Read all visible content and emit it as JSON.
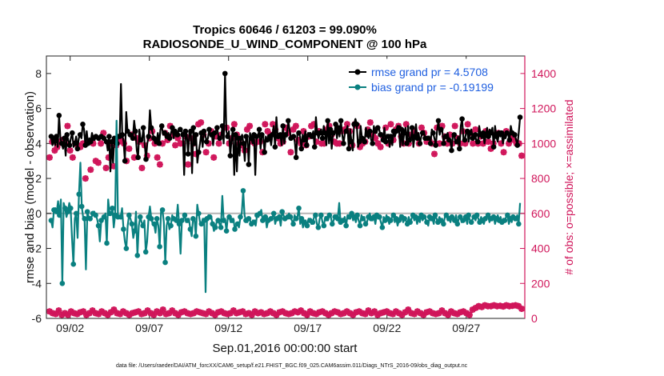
{
  "chart_data": {
    "type": "line",
    "title_line1": "Tropics 60646 / 61203 = 99.090%",
    "title_line2": "RADIOSONDE_U_WIND_COMPONENT @ 100 hPa",
    "ylabel": "rmse and bias (model - observation)",
    "ylabel_right": "# of obs: o=possible; ×=assimilated",
    "xlabel": "Sep.01,2016 00:00:00 start",
    "footnote": "data file: /Users/raeder/DAI/ATM_forcXX/CAM6_setup/f.e21.FHIST_BGC.f09_025.CAM6assim.011/Diags_NTrS_2016-09/obs_diag_output.nc",
    "ylim": [
      -6,
      9
    ],
    "ylim_right": [
      0,
      1500
    ],
    "xlim": [
      0.5,
      30.7
    ],
    "y_ticks": [
      "-6",
      "-4",
      "-2",
      "0",
      "2",
      "4",
      "6",
      "8"
    ],
    "y_ticks_right": [
      "0",
      "200",
      "400",
      "600",
      "800",
      "1000",
      "1200",
      "1400"
    ],
    "x_ticks": [
      "09/02",
      "09/07",
      "09/12",
      "09/17",
      "09/22",
      "09/27"
    ],
    "x_tick_values": [
      2,
      7,
      12,
      17,
      22,
      27
    ],
    "colors": {
      "rmse": "#000000",
      "bias": "#0a8080",
      "obs": "#d0155a",
      "zero_line": "#b5b5b5",
      "legend_text": "#1f5fe0"
    },
    "series": [
      {
        "name": "rmse grand pr = 4.5708",
        "color": "#000000",
        "values": [
          4.4,
          3.9,
          4.3,
          3.9,
          4.4,
          3.8,
          5.6,
          4.3,
          4.0,
          3.7,
          4.3,
          3.3,
          4.5,
          4.2,
          3.9,
          4.3,
          4.6,
          3.8,
          4.0,
          4.4,
          3.7,
          4.3,
          4.5,
          4.3,
          5.1,
          4.8,
          3.9,
          4.7,
          4.0,
          4.3,
          4.1,
          4.6,
          4.3,
          4.2,
          4.4,
          4.3,
          4.3,
          4.4,
          4.4,
          4.3,
          4.3,
          4.2,
          4.1,
          3.6,
          4.4,
          2.4,
          4.1,
          2.9,
          4.3,
          4.1,
          4.0,
          4.5,
          4.4,
          7.4,
          4.5,
          4.1,
          3.0,
          5.8,
          4.7,
          4.6,
          4.5,
          4.4,
          4.3,
          5.3,
          4.7,
          3.6,
          3.2,
          4.8,
          4.2,
          4.1,
          4.9,
          4.0,
          3.1,
          4.0,
          4.4,
          5.9,
          4.9,
          4.6,
          4.3,
          4.0,
          4.1,
          4.6,
          4.0,
          4.8,
          5.0,
          4.5,
          4.6,
          4.7,
          4.4,
          4.6,
          4.3,
          4.6,
          4.9,
          4.3,
          4.7,
          4.4,
          4.5,
          4.8,
          4.8,
          4.7,
          4.5,
          2.2,
          4.7,
          4.5,
          3.4,
          4.7,
          4.7,
          2.3,
          4.9,
          3.9,
          4.5,
          2.9,
          3.5,
          4.0,
          4.6,
          3.8,
          4.7,
          4.5,
          4.1,
          4.3,
          4.8,
          4.4,
          4.5,
          3.9,
          4.6,
          4.7,
          4.9,
          4.4,
          4.3,
          4.3,
          5.0,
          4.0,
          8.0,
          4.7,
          4.4,
          4.7,
          3.3,
          4.3,
          4.8,
          2.2,
          4.5,
          2.4,
          4.3,
          3.3,
          4.3,
          4.5,
          4.0,
          3.0,
          4.4,
          4.3,
          2.8,
          4.6,
          4.3,
          4.0,
          4.5,
          2.2,
          4.4,
          4.4,
          4.8,
          3.7,
          4.5,
          4.5,
          3.5,
          4.4,
          4.2,
          4.2,
          4.4,
          3.9,
          4.5,
          5.0,
          3.8,
          5.5,
          4.4,
          4.3,
          4.5,
          3.9,
          5.0,
          4.0,
          4.5,
          4.4,
          5.3,
          4.8,
          4.3,
          4.4,
          4.4,
          4.1,
          3.2,
          4.6,
          4.6,
          4.4,
          3.7,
          4.5,
          4.2,
          4.7,
          3.9,
          4.6,
          4.5,
          4.6,
          4.4,
          4.7,
          3.8,
          5.5,
          4.6,
          4.3,
          4.6,
          4.8,
          4.3,
          5.0,
          4.6,
          3.9,
          5.3,
          4.0,
          4.8,
          3.7,
          4.6,
          4.5,
          5.1,
          4.3,
          4.9,
          4.4,
          5.3,
          4.5,
          4.0,
          4.6,
          4.7,
          5.0,
          3.7,
          4.8,
          4.1,
          3.6,
          5.1,
          5.4,
          5.1,
          3.8,
          4.1,
          5.0,
          4.3,
          4.3,
          4.1,
          4.9,
          4.5,
          4.3,
          4.7,
          4.2,
          4.0,
          5.0,
          4.7,
          4.6,
          4.9,
          4.8,
          4.5,
          4.6,
          4.2,
          4.9,
          4.1,
          4.5,
          4.4,
          3.8,
          4.4,
          3.9,
          4.7,
          4.4,
          4.7,
          5.0,
          4.9,
          3.8,
          4.8,
          3.9,
          4.6,
          4.9,
          4.0,
          5.0,
          4.2,
          4.1,
          4.9,
          3.8,
          4.4,
          5.1,
          4.3,
          4.6,
          4.0,
          4.4,
          4.6,
          4.7,
          4.3,
          4.3,
          4.3,
          4.4,
          4.0,
          4.8,
          4.6,
          4.3,
          3.9,
          4.7,
          5.3,
          4.5,
          4.8,
          4.7,
          4.0,
          4.5,
          4.4,
          4.6,
          4.2,
          4.2,
          3.6,
          4.5,
          4.5,
          4.0,
          4.1,
          4.4,
          3.7,
          5.0,
          5.4,
          4.3,
          4.2,
          4.6,
          4.7,
          4.1,
          4.6,
          4.8,
          4.3,
          4.4,
          4.5,
          4.0,
          4.1,
          5.0,
          4.5,
          4.3,
          4.6,
          4.0,
          4.5,
          4.9,
          4.4,
          4.8,
          4.6,
          4.9,
          3.8,
          5.0,
          4.4,
          4.1,
          4.6,
          4.4,
          4.6,
          4.0,
          4.4,
          4.3,
          4.6,
          4.5,
          4.2,
          5.0,
          4.6,
          4.4,
          4.5,
          4.2,
          3.9,
          4.6,
          5.5
        ]
      },
      {
        "name": "bias grand pr = -0.19199",
        "color": "#0a8080",
        "values": [
          -0.4,
          -0.8,
          0.2,
          0.3,
          0.1,
          0.7,
          -0.1,
          0.8,
          -4.0,
          0.6,
          0.3,
          -0.2,
          0.1,
          0.6,
          0.3,
          -1.4,
          -2.9,
          -0.3,
          0.0,
          -1.4,
          1.1,
          2.9,
          0.4,
          -0.2,
          -0.3,
          -3.2,
          0.1,
          -0.2,
          -0.3,
          -0.2,
          0.0,
          0.1,
          -0.1,
          -0.3,
          -0.7,
          -1.6,
          -0.4,
          -0.2,
          -0.2,
          0.0,
          -1.7,
          0.8,
          0.0,
          -0.1,
          0.3,
          -0.8,
          -0.1,
          5.3,
          -0.2,
          -0.2,
          -0.2,
          0.3,
          -0.9,
          -1.6,
          -2.0,
          -0.7,
          -0.1,
          -0.3,
          -0.6,
          -1.4,
          -1.0,
          0.1,
          -2.4,
          -0.7,
          -0.2,
          -0.5,
          -0.7,
          -0.4,
          -2.2,
          -1.6,
          -0.2,
          0.4,
          -0.3,
          -0.6,
          -0.6,
          -1.1,
          -0.3,
          -0.7,
          -1.9,
          0.1,
          0.2,
          -0.5,
          -2.8,
          -0.7,
          -0.3,
          -0.9,
          -0.7,
          -0.1,
          -0.3,
          -0.4,
          -0.4,
          0.5,
          -0.6,
          -2.3,
          -0.4,
          -0.3,
          -0.1,
          -0.5,
          -0.4,
          -0.3,
          -0.9,
          -1.3,
          -0.3,
          -0.3,
          -1.3,
          0.5,
          0.0,
          -0.5,
          -0.6,
          -0.3,
          -0.4,
          -4.5,
          -0.3,
          -0.1,
          -0.2,
          -0.2,
          -0.6,
          -1.0,
          -0.8,
          -0.5,
          -0.4,
          -0.6,
          -0.8,
          1.0,
          -0.4,
          -0.3,
          -1.0,
          -0.2,
          -0.2,
          -0.5,
          -0.4,
          -0.3,
          -0.9,
          -0.7,
          -0.6,
          -0.8,
          -0.2,
          0.0,
          1.3,
          -0.1,
          -0.4,
          -0.5,
          -0.3,
          -0.4,
          -0.6,
          -0.4,
          -0.5,
          -0.7,
          -0.1,
          -0.2,
          0.0,
          0.2,
          -0.4,
          -0.3,
          -0.2,
          -0.8,
          -0.4,
          -0.3,
          -0.3,
          -0.2,
          0.0,
          -0.6,
          -0.3,
          -0.4,
          -0.2,
          -0.7,
          0.1,
          -0.1,
          -0.3,
          -0.3,
          -0.2,
          0.0,
          -0.2,
          -0.4,
          -0.6,
          -0.1,
          -0.3,
          -0.2,
          0.3,
          -0.6,
          -0.3,
          -0.8,
          -0.5,
          -0.4,
          -0.7,
          -0.3,
          -0.4,
          -0.6,
          -0.5,
          -0.2,
          -0.1,
          -0.6,
          -0.8,
          -0.3,
          -0.1,
          -0.5,
          -0.7,
          -0.2,
          -0.3,
          -0.4,
          -0.1,
          -0.2,
          -0.6,
          -0.4,
          -0.2,
          -0.1,
          -0.3,
          0.6,
          -0.5,
          -0.3,
          -0.4,
          -0.2,
          -0.7,
          -0.1,
          -0.2,
          -0.3,
          0.0,
          -0.4,
          -0.2,
          -0.5,
          -0.1,
          -0.4,
          -0.7,
          -0.1,
          -0.3,
          -0.2,
          -0.6,
          -0.5,
          -0.2,
          0.0,
          -0.3,
          -0.4,
          -0.2,
          -0.6,
          -0.1,
          -0.3,
          -0.2,
          -0.5,
          -0.8,
          -0.2,
          -0.4,
          -0.1,
          -0.3,
          -0.6,
          -0.4,
          -0.2,
          -0.1,
          -0.5,
          -0.3,
          -0.7,
          -0.4,
          -0.1,
          -0.2,
          -0.5,
          -0.3,
          -0.4,
          -0.6,
          -0.2,
          -0.5,
          -0.3,
          -0.1,
          -0.4,
          -0.2,
          -0.6,
          -0.3,
          -0.5,
          -0.1,
          -0.4,
          -0.2,
          -0.3,
          -0.5,
          -0.7,
          -0.2,
          -0.4,
          -0.3,
          -0.6,
          -0.1,
          -0.3,
          -0.5,
          -0.2,
          -0.4,
          -0.3,
          -0.6,
          -0.2,
          -0.1,
          -0.4,
          -0.3,
          -0.5,
          -0.2,
          -0.3,
          -0.4,
          -0.1,
          -0.6,
          -0.3,
          -0.2,
          -0.5,
          -0.4,
          -0.3,
          -0.2,
          -0.6,
          -0.1,
          -0.4,
          -0.5,
          -0.3,
          -0.2,
          -0.4,
          -0.1,
          -0.3,
          -0.5,
          -0.2,
          -0.4,
          -0.6,
          -0.3,
          -0.2,
          -0.1,
          -0.5,
          -0.3,
          -0.4,
          -0.2,
          -0.6,
          -0.3,
          -0.1,
          -0.4,
          -0.2,
          -0.5,
          -0.3,
          -0.4,
          -0.2,
          -0.1,
          -0.6,
          -0.3,
          -0.5,
          -0.2,
          -0.4,
          -0.3,
          -0.1,
          -0.6,
          0.6
        ]
      }
    ],
    "obs_possible": [
      920,
      1010,
      960,
      980,
      1010,
      1020,
      1000,
      1100,
      960,
      920,
      1000,
      990,
      980,
      1000,
      800,
      1010,
      850,
      1000,
      900,
      890,
      1000,
      1060,
      860,
      920,
      1000,
      870,
      990,
      1010,
      1020,
      1000,
      900,
      970,
      1050,
      920,
      1030,
      1010,
      860,
      990,
      930,
      1030,
      1070,
      1000,
      920,
      880,
      1000,
      1060,
      1020,
      1100,
      1050,
      990,
      1030,
      1000,
      1000,
      1040,
      880,
      1030,
      1000,
      940,
      1110,
      1120,
      1050,
      950,
      1000,
      1070,
      920,
      1040,
      1000,
      1050,
      1090,
      1090,
      1000,
      1030,
      1110,
      1050,
      1000,
      990,
      960,
      1080,
      1100,
      1010,
      1000,
      1010,
      1010,
      950,
      1110,
      1070,
      1050,
      1110,
      1080,
      1030,
      1000,
      1010,
      1090,
      1060,
      950,
      1080,
      1100,
      1020,
      1000,
      1070,
      990,
      1040,
      1100,
      1110,
      1010,
      1070,
      1000,
      1000,
      1080,
      1100,
      1050,
      1010,
      1000,
      1000,
      1070,
      1080,
      1110,
      1070,
      990,
      1110,
      1100,
      980,
      1000,
      1010,
      1080,
      1120,
      1050,
      1030,
      1000,
      980,
      1040,
      1090,
      1000,
      1110,
      1020,
      1080,
      1100,
      1040,
      1000,
      1110,
      1000,
      1050,
      1070,
      1050,
      1000,
      1090,
      1060,
      1010,
      1020,
      1000,
      940,
      1090,
      1000,
      1100,
      1040,
      1000,
      1050,
      1000,
      1100,
      1030,
      1000,
      1070,
      1000,
      1110,
      1060,
      1000,
      1080,
      1000,
      1040,
      1000,
      1070,
      1010,
      970,
      1000,
      1050,
      1060,
      1000,
      950,
      1070,
      1000,
      1040,
      1020,
      1000,
      1000,
      930
    ],
    "obs_assimilated": [
      40,
      30,
      25,
      45,
      20,
      30,
      20,
      40,
      30,
      25,
      35,
      40,
      20,
      30,
      45,
      30,
      25,
      40,
      30,
      20,
      35,
      50,
      30,
      25,
      40,
      30,
      20,
      30,
      35,
      40,
      25,
      30,
      45,
      30,
      20,
      40,
      30,
      50,
      25,
      30,
      45,
      30,
      20,
      35,
      40,
      30,
      25,
      30,
      40,
      35,
      30,
      25,
      40,
      30,
      20,
      35,
      40,
      30,
      25,
      30,
      45,
      30,
      35,
      40,
      25,
      30,
      20,
      40,
      30,
      35,
      25,
      30,
      40,
      30,
      20,
      35,
      40,
      30,
      25,
      30,
      40,
      35,
      45,
      30,
      20,
      40,
      30,
      25,
      35,
      40,
      30,
      20,
      30,
      40,
      35,
      25,
      30,
      40,
      30,
      20,
      35,
      40,
      30,
      25,
      45,
      30,
      40,
      20,
      30,
      35,
      40,
      30,
      25,
      40,
      30,
      20,
      35,
      50,
      30,
      25,
      40,
      30,
      20,
      35,
      40,
      30,
      25,
      30,
      45,
      30,
      20,
      40,
      30,
      25,
      35,
      40,
      30,
      20,
      50,
      60,
      70,
      65,
      75,
      70,
      70,
      75,
      70,
      72,
      68,
      75,
      70,
      72,
      75,
      70,
      55
    ]
  }
}
